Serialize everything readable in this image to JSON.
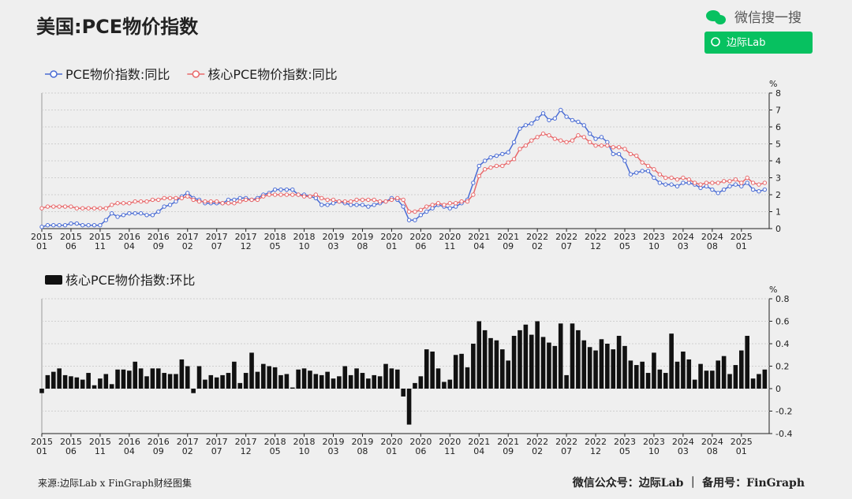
{
  "header": {
    "title": "美国:PCE物价指数",
    "brand": "微信搜一搜",
    "search": "边际Lab"
  },
  "footer": {
    "source": "来源:边际Lab x FinGraph财经图集",
    "account": "微信公众号：边际Lab ｜ 备用号：FinGraph"
  },
  "chart_data": [
    {
      "type": "line",
      "y_unit": "%",
      "ylim": [
        0,
        8
      ],
      "yticks": [
        0,
        1,
        2,
        3,
        4,
        5,
        6,
        7,
        8
      ],
      "grid": true,
      "legend": "top-left",
      "categories": [
        "2015\n01",
        null,
        null,
        null,
        null,
        "2015\n06",
        null,
        null,
        null,
        null,
        "2015\n11",
        null,
        null,
        null,
        null,
        "2016\n04",
        null,
        null,
        null,
        null,
        "2016\n09",
        null,
        null,
        null,
        null,
        "2017\n02",
        null,
        null,
        null,
        null,
        "2017\n07",
        null,
        null,
        null,
        null,
        "2017\n12",
        null,
        null,
        null,
        null,
        "2018\n05",
        null,
        null,
        null,
        null,
        "2018\n10",
        null,
        null,
        null,
        null,
        "2019\n03",
        null,
        null,
        null,
        null,
        "2019\n08",
        null,
        null,
        null,
        null,
        "2020\n01",
        null,
        null,
        null,
        null,
        "2020\n06",
        null,
        null,
        null,
        null,
        "2020\n11",
        null,
        null,
        null,
        null,
        "2021\n04",
        null,
        null,
        null,
        null,
        "2021\n09",
        null,
        null,
        null,
        null,
        "2022\n02",
        null,
        null,
        null,
        null,
        "2022\n07",
        null,
        null,
        null,
        null,
        "2022\n12",
        null,
        null,
        null,
        null,
        "2023\n05",
        null,
        null,
        null,
        null,
        "2023\n10",
        null,
        null,
        null,
        null,
        "2024\n03",
        null,
        null,
        null,
        null,
        "2024\n08",
        null,
        null,
        null,
        null,
        "2025\n01",
        null,
        null,
        null,
        null
      ],
      "series": [
        {
          "name": "PCE物价指数:同比",
          "color": "#4a6cd4",
          "values": [
            0.1,
            0.2,
            0.2,
            0.2,
            0.2,
            0.3,
            0.3,
            0.2,
            0.2,
            0.2,
            0.2,
            0.5,
            0.9,
            0.7,
            0.8,
            0.9,
            0.9,
            0.9,
            0.8,
            0.8,
            1.0,
            1.3,
            1.4,
            1.6,
            1.9,
            2.1,
            1.8,
            1.7,
            1.5,
            1.5,
            1.5,
            1.5,
            1.7,
            1.7,
            1.8,
            1.8,
            1.7,
            1.8,
            2.0,
            2.1,
            2.3,
            2.3,
            2.3,
            2.3,
            2.0,
            2.0,
            1.9,
            1.8,
            1.4,
            1.4,
            1.5,
            1.6,
            1.5,
            1.4,
            1.4,
            1.4,
            1.3,
            1.4,
            1.5,
            1.6,
            1.8,
            1.7,
            1.3,
            0.5,
            0.5,
            0.8,
            1.0,
            1.2,
            1.4,
            1.3,
            1.2,
            1.3,
            1.5,
            1.7,
            2.7,
            3.7,
            4.0,
            4.2,
            4.3,
            4.4,
            4.5,
            5.1,
            5.9,
            6.1,
            6.2,
            6.5,
            6.8,
            6.4,
            6.5,
            7.0,
            6.6,
            6.4,
            6.3,
            6.1,
            5.6,
            5.3,
            5.4,
            5.1,
            4.4,
            4.4,
            4.0,
            3.2,
            3.3,
            3.4,
            3.4,
            3.0,
            2.7,
            2.6,
            2.6,
            2.5,
            2.7,
            2.7,
            2.6,
            2.4,
            2.5,
            2.3,
            2.1,
            2.3,
            2.5,
            2.6,
            2.5,
            2.7,
            2.3,
            2.2,
            2.3
          ]
        },
        {
          "name": "核心PCE物价指数:同比",
          "color": "#e8686a",
          "values": [
            1.2,
            1.3,
            1.3,
            1.3,
            1.3,
            1.3,
            1.2,
            1.2,
            1.2,
            1.2,
            1.2,
            1.2,
            1.4,
            1.5,
            1.5,
            1.5,
            1.6,
            1.6,
            1.6,
            1.7,
            1.7,
            1.8,
            1.8,
            1.8,
            1.8,
            1.9,
            1.7,
            1.6,
            1.6,
            1.6,
            1.6,
            1.5,
            1.5,
            1.5,
            1.6,
            1.7,
            1.7,
            1.7,
            1.9,
            2.0,
            2.0,
            2.0,
            2.0,
            2.0,
            2.0,
            1.9,
            1.9,
            2.0,
            1.8,
            1.7,
            1.7,
            1.6,
            1.6,
            1.6,
            1.7,
            1.7,
            1.7,
            1.7,
            1.6,
            1.6,
            1.7,
            1.8,
            1.7,
            1.0,
            1.0,
            1.1,
            1.3,
            1.4,
            1.5,
            1.4,
            1.5,
            1.5,
            1.6,
            1.6,
            2.0,
            3.1,
            3.5,
            3.6,
            3.7,
            3.7,
            3.9,
            4.1,
            4.7,
            4.9,
            5.2,
            5.4,
            5.6,
            5.5,
            5.3,
            5.2,
            5.1,
            5.2,
            5.5,
            5.4,
            5.1,
            4.9,
            4.9,
            4.9,
            4.8,
            4.8,
            4.7,
            4.4,
            4.3,
            3.9,
            3.7,
            3.5,
            3.2,
            3.0,
            3.0,
            2.9,
            3.0,
            2.9,
            2.7,
            2.6,
            2.7,
            2.7,
            2.7,
            2.8,
            2.8,
            2.9,
            2.7,
            3.0,
            2.7,
            2.6,
            2.7
          ]
        }
      ]
    },
    {
      "type": "bar",
      "y_unit": "%",
      "ylim": [
        -0.4,
        0.8
      ],
      "yticks": [
        -0.4,
        -0.2,
        0,
        0.2,
        0.4,
        0.6,
        0.8
      ],
      "grid": true,
      "legend": "top-left",
      "categories": [
        "2015\n01",
        null,
        null,
        null,
        null,
        "2015\n06",
        null,
        null,
        null,
        null,
        "2015\n11",
        null,
        null,
        null,
        null,
        "2016\n04",
        null,
        null,
        null,
        null,
        "2016\n09",
        null,
        null,
        null,
        null,
        "2017\n02",
        null,
        null,
        null,
        null,
        "2017\n07",
        null,
        null,
        null,
        null,
        "2017\n12",
        null,
        null,
        null,
        null,
        "2018\n05",
        null,
        null,
        null,
        null,
        "2018\n10",
        null,
        null,
        null,
        null,
        "2019\n03",
        null,
        null,
        null,
        null,
        "2019\n08",
        null,
        null,
        null,
        null,
        "2020\n01",
        null,
        null,
        null,
        null,
        "2020\n06",
        null,
        null,
        null,
        null,
        "2020\n11",
        null,
        null,
        null,
        null,
        "2021\n04",
        null,
        null,
        null,
        null,
        "2021\n09",
        null,
        null,
        null,
        null,
        "2022\n02",
        null,
        null,
        null,
        null,
        "2022\n07",
        null,
        null,
        null,
        null,
        "2022\n12",
        null,
        null,
        null,
        null,
        "2023\n05",
        null,
        null,
        null,
        null,
        "2023\n10",
        null,
        null,
        null,
        null,
        "2024\n03",
        null,
        null,
        null,
        null,
        "2024\n08",
        null,
        null,
        null,
        null,
        "2025\n01",
        null,
        null,
        null,
        null
      ],
      "series": [
        {
          "name": "核心PCE物价指数:环比",
          "color": "#111111",
          "values": [
            -0.04,
            0.12,
            0.15,
            0.18,
            0.12,
            0.11,
            0.1,
            0.08,
            0.14,
            0.03,
            0.09,
            0.13,
            0.04,
            0.17,
            0.17,
            0.16,
            0.24,
            0.18,
            0.11,
            0.18,
            0.18,
            0.14,
            0.13,
            0.13,
            0.26,
            0.2,
            -0.04,
            0.2,
            0.08,
            0.12,
            0.1,
            0.12,
            0.14,
            0.24,
            0.05,
            0.14,
            0.32,
            0.15,
            0.22,
            0.2,
            0.19,
            0.12,
            0.13,
            0.01,
            0.17,
            0.18,
            0.16,
            0.13,
            0.12,
            0.15,
            0.09,
            0.11,
            0.2,
            0.12,
            0.18,
            0.14,
            0.09,
            0.12,
            0.11,
            0.22,
            0.18,
            0.17,
            -0.07,
            -0.32,
            0.05,
            0.11,
            0.35,
            0.33,
            0.18,
            0.06,
            0.08,
            0.3,
            0.31,
            0.19,
            0.4,
            0.6,
            0.52,
            0.45,
            0.43,
            0.35,
            0.25,
            0.47,
            0.52,
            0.57,
            0.48,
            0.6,
            0.46,
            0.41,
            0.38,
            0.58,
            0.12,
            0.58,
            0.52,
            0.43,
            0.37,
            0.34,
            0.44,
            0.4,
            0.35,
            0.47,
            0.38,
            0.25,
            0.21,
            0.24,
            0.14,
            0.32,
            0.17,
            0.14,
            0.49,
            0.24,
            0.33,
            0.26,
            0.08,
            0.22,
            0.16,
            0.16,
            0.25,
            0.29,
            0.13,
            0.21,
            0.34,
            0.47,
            0.09,
            0.13,
            0.17
          ]
        }
      ]
    }
  ]
}
